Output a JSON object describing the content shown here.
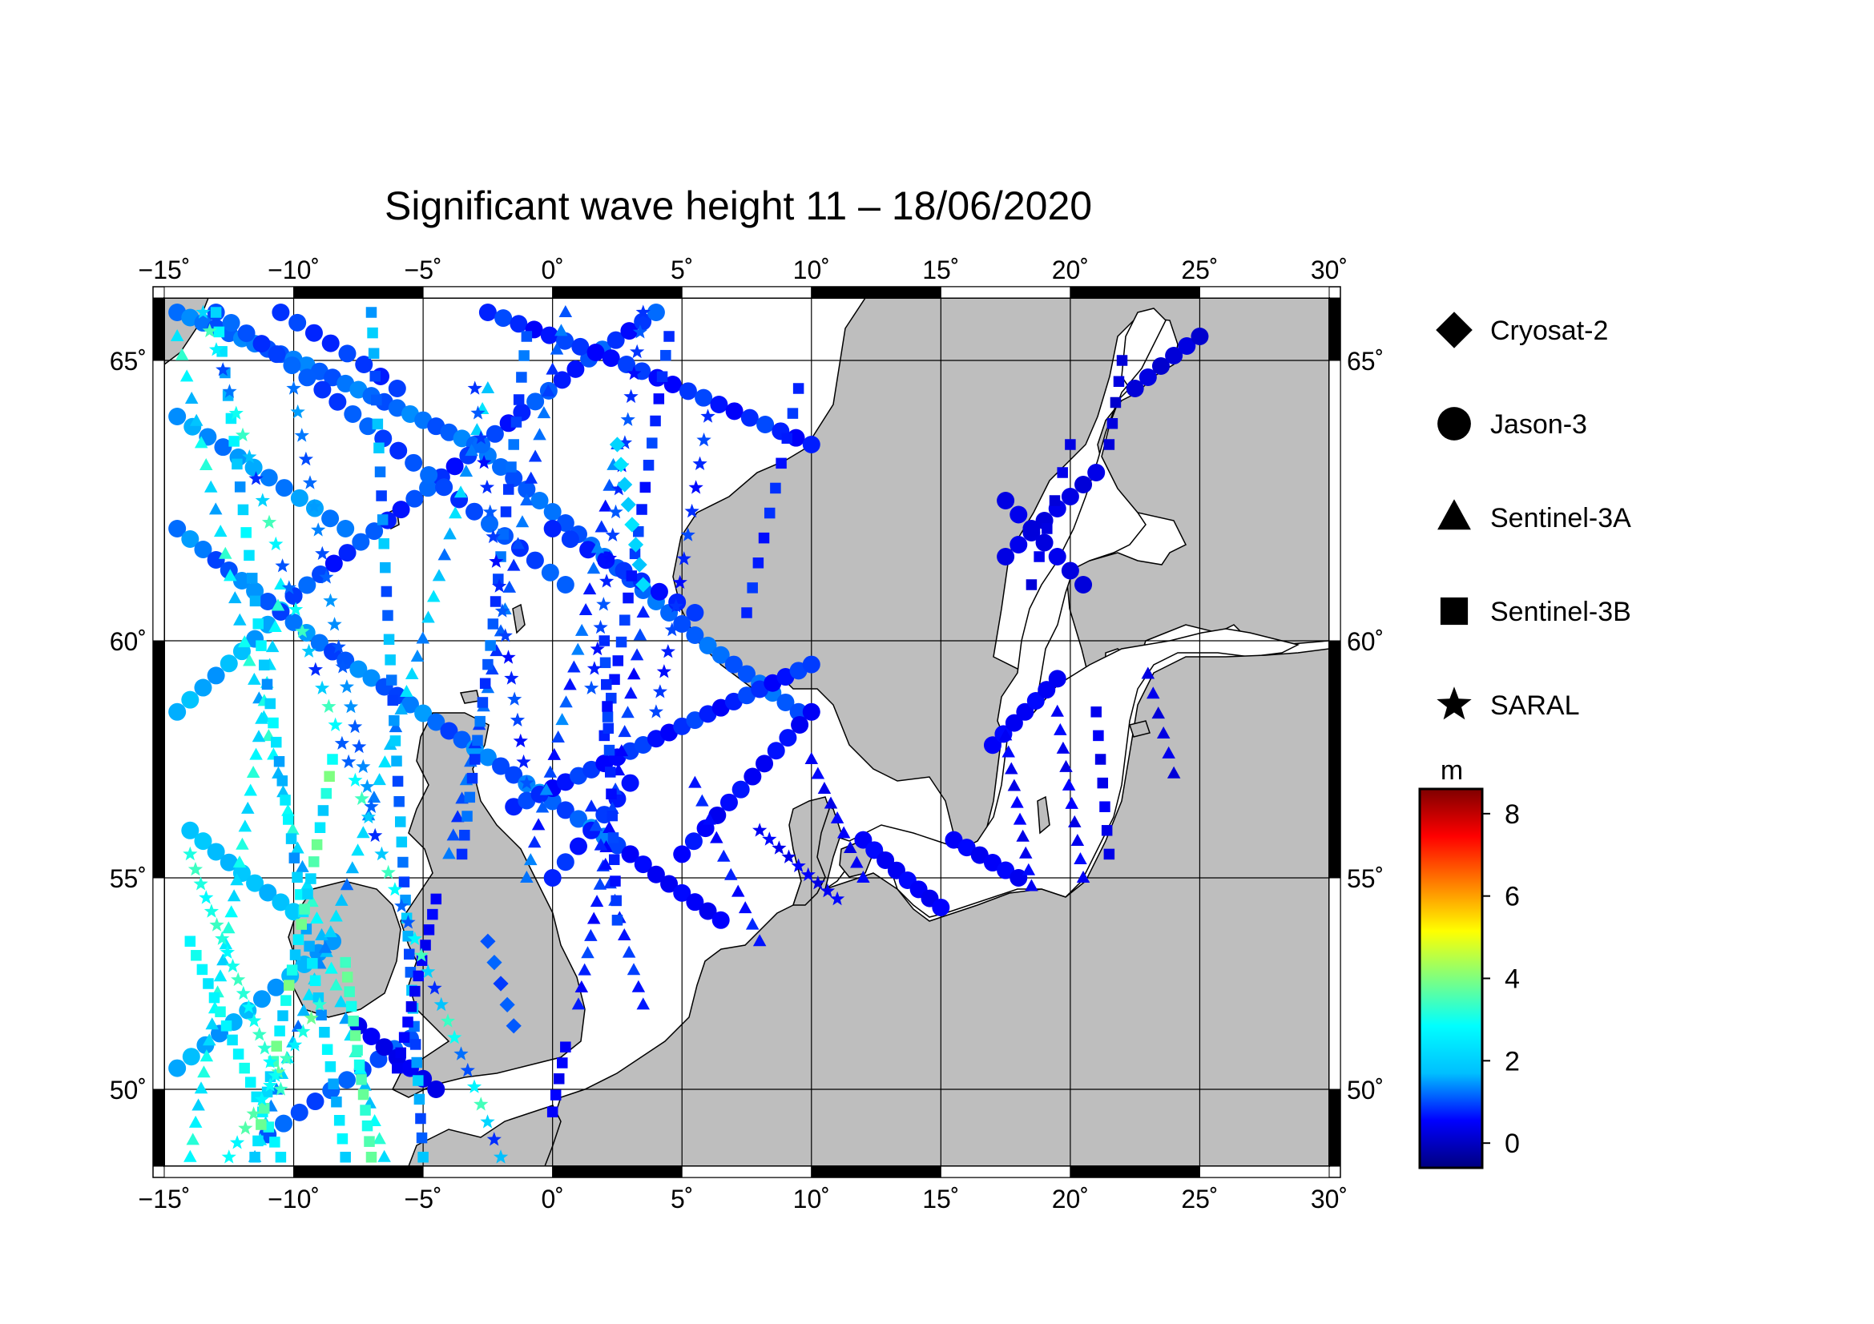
{
  "title": "Significant wave height 11 – 18/06/2020",
  "map": {
    "lon_range": [
      -15,
      30
    ],
    "lat_range": [
      48.3,
      66.3
    ],
    "lon_ticks": [
      -15,
      -10,
      -5,
      0,
      5,
      10,
      15,
      20,
      25,
      30
    ],
    "lon_tick_labels": [
      "−15˚",
      "−10˚",
      "−5˚",
      "0˚",
      "5˚",
      "10˚",
      "15˚",
      "20˚",
      "25˚",
      "30˚"
    ],
    "lat_ticks": [
      50,
      55,
      60,
      65
    ],
    "lat_tick_labels": [
      "50˚",
      "55˚",
      "60˚",
      "65˚"
    ],
    "land_color": "#bebebe",
    "sea_color": "#ffffff",
    "grid": true
  },
  "legend": [
    {
      "label": "Cryosat-2",
      "symbol": "diamond-icon"
    },
    {
      "label": "Jason-3",
      "symbol": "circle-icon"
    },
    {
      "label": "Sentinel-3A",
      "symbol": "triangle-icon"
    },
    {
      "label": "Sentinel-3B",
      "symbol": "square-icon"
    },
    {
      "label": "SARAL",
      "symbol": "star-icon"
    }
  ],
  "colorbar": {
    "unit": "m",
    "range": [
      -0.6,
      8.6
    ],
    "ticks": [
      0,
      2,
      4,
      6,
      8
    ],
    "tick_labels": [
      "0",
      "2",
      "4",
      "6",
      "8"
    ],
    "colors": [
      "#00007f",
      "#0000ff",
      "#00bfff",
      "#00ffff",
      "#7fff7f",
      "#ffff00",
      "#ff7f00",
      "#ff0000",
      "#7f0000"
    ]
  },
  "chart_data": {
    "type": "scatter",
    "title": "Significant wave height 11 – 18/06/2020",
    "xlabel": "",
    "ylabel": "",
    "xlim": [
      -15,
      30
    ],
    "ylim": [
      48.3,
      66.3
    ],
    "value_unit": "m",
    "series": [
      {
        "name": "Jason-3",
        "marker": "circle",
        "tracks": [
          {
            "start": [
              -14.5,
              66.0
            ],
            "end": [
              -3.0,
              63.5
            ],
            "n": 24,
            "swh": [
              1.0,
              1.4
            ]
          },
          {
            "start": [
              -3.0,
              63.5
            ],
            "end": [
              9.5,
              58.5
            ],
            "n": 26,
            "swh": [
              1.0,
              1.3
            ]
          },
          {
            "start": [
              -14.5,
              58.5
            ],
            "end": [
              -10.0,
              60.8
            ],
            "n": 10,
            "swh": [
              1.4,
              1.8
            ]
          },
          {
            "start": [
              -10.0,
              60.8
            ],
            "end": [
              4.0,
              66.0
            ],
            "n": 28,
            "swh": [
              0.6,
              1.2
            ]
          },
          {
            "start": [
              -14.5,
              62.0
            ],
            "end": [
              3.0,
              55.5
            ],
            "n": 36,
            "swh": [
              0.9,
              1.5
            ]
          },
          {
            "start": [
              3.0,
              55.5
            ],
            "end": [
              6.5,
              54.0
            ],
            "n": 8,
            "swh": [
              0.4,
              0.6
            ]
          },
          {
            "start": [
              -14.0,
              56.0
            ],
            "end": [
              -10.0,
              54.2
            ],
            "n": 9,
            "swh": [
              1.6,
              1.9
            ]
          },
          {
            "start": [
              -14.5,
              50.5
            ],
            "end": [
              -8.5,
              53.5
            ],
            "n": 12,
            "swh": [
              1.4,
              1.7
            ]
          },
          {
            "start": [
              -11.0,
              49.0
            ],
            "end": [
              -5.5,
              51.2
            ],
            "n": 10,
            "swh": [
              0.9,
              1.2
            ]
          },
          {
            "start": [
              -13.0,
              66.0
            ],
            "end": [
              0.5,
              61.0
            ],
            "n": 24,
            "swh": [
              0.8,
              1.2
            ]
          },
          {
            "start": [
              0.0,
              62.0
            ],
            "end": [
              5.5,
              60.5
            ],
            "n": 9,
            "swh": [
              0.6,
              0.9
            ]
          },
          {
            "start": [
              -2.5,
              66.0
            ],
            "end": [
              10.0,
              63.5
            ],
            "n": 22,
            "swh": [
              0.5,
              1.0
            ]
          },
          {
            "start": [
              -1.5,
              56.5
            ],
            "end": [
              10.0,
              59.5
            ],
            "n": 24,
            "swh": [
              0.5,
              1.0
            ]
          },
          {
            "start": [
              5.0,
              55.5
            ],
            "end": [
              10.0,
              58.5
            ],
            "n": 12,
            "swh": [
              0.4,
              0.7
            ]
          },
          {
            "start": [
              -14.5,
              64.0
            ],
            "end": [
              -8.0,
              62.0
            ],
            "n": 12,
            "swh": [
              1.2,
              1.6
            ]
          },
          {
            "start": [
              -10.5,
              66.0
            ],
            "end": [
              -6.0,
              64.5
            ],
            "n": 8,
            "swh": [
              0.7,
              1.0
            ]
          },
          {
            "start": [
              0.0,
              55.0
            ],
            "end": [
              3.0,
              57.0
            ],
            "n": 7,
            "swh": [
              0.6,
              0.9
            ]
          },
          {
            "start": [
              17.5,
              61.5
            ],
            "end": [
              21.0,
              63.0
            ],
            "n": 8,
            "swh": [
              0.2,
              0.4
            ]
          },
          {
            "start": [
              17.5,
              62.5
            ],
            "end": [
              20.5,
              61.0
            ],
            "n": 7,
            "swh": [
              0.2,
              0.4
            ]
          },
          {
            "start": [
              22.5,
              64.5
            ],
            "end": [
              25.0,
              65.5
            ],
            "n": 6,
            "swh": [
              0.1,
              0.3
            ]
          },
          {
            "start": [
              17.0,
              57.8
            ],
            "end": [
              19.5,
              59.2
            ],
            "n": 7,
            "swh": [
              0.4,
              0.6
            ]
          },
          {
            "start": [
              12.0,
              55.8
            ],
            "end": [
              15.0,
              54.3
            ],
            "n": 8,
            "swh": [
              0.4,
              0.6
            ]
          },
          {
            "start": [
              15.5,
              55.8
            ],
            "end": [
              18.0,
              55.0
            ],
            "n": 6,
            "swh": [
              0.4,
              0.6
            ]
          },
          {
            "start": [
              -7.5,
              51.5
            ],
            "end": [
              -4.5,
              50.0
            ],
            "n": 7,
            "swh": [
              0.3,
              0.5
            ]
          }
        ]
      },
      {
        "name": "Sentinel-3A",
        "marker": "triangle",
        "tracks": [
          {
            "start": [
              -14.5,
              65.5
            ],
            "end": [
              -6.5,
              48.5
            ],
            "n": 44,
            "swh": [
              1.5,
              3.3
            ]
          },
          {
            "start": [
              -10.5,
              61.0
            ],
            "end": [
              -14.0,
              48.5
            ],
            "n": 34,
            "swh": [
              2.0,
              3.2
            ]
          },
          {
            "start": [
              -2.5,
              64.5
            ],
            "end": [
              -11.5,
              48.5
            ],
            "n": 44,
            "swh": [
              1.2,
              2.4
            ]
          },
          {
            "start": [
              0.5,
              66.0
            ],
            "end": [
              -4.0,
              55.5
            ],
            "n": 28,
            "swh": [
              0.8,
              1.3
            ]
          },
          {
            "start": [
              2.5,
              63.5
            ],
            "end": [
              -1.0,
              55.0
            ],
            "n": 24,
            "swh": [
              0.6,
              1.4
            ]
          },
          {
            "start": [
              3.5,
              60.5
            ],
            "end": [
              1.0,
              52.0
            ],
            "n": 22,
            "swh": [
              0.5,
              1.0
            ]
          },
          {
            "start": [
              10.0,
              57.5
            ],
            "end": [
              12.0,
              55.0
            ],
            "n": 9,
            "swh": [
              0.3,
              0.6
            ]
          },
          {
            "start": [
              17.5,
              58.0
            ],
            "end": [
              18.5,
              54.8
            ],
            "n": 10,
            "swh": [
              0.3,
              0.6
            ]
          },
          {
            "start": [
              19.5,
              58.5
            ],
            "end": [
              20.5,
              55.0
            ],
            "n": 10,
            "swh": [
              0.3,
              0.6
            ]
          },
          {
            "start": [
              23.0,
              59.3
            ],
            "end": [
              24.0,
              57.2
            ],
            "n": 6,
            "swh": [
              0.2,
              0.4
            ]
          },
          {
            "start": [
              1.5,
              56.5
            ],
            "end": [
              3.5,
              52.0
            ],
            "n": 12,
            "swh": [
              0.6,
              1.0
            ]
          },
          {
            "start": [
              5.5,
              57.0
            ],
            "end": [
              8.0,
              53.5
            ],
            "n": 10,
            "swh": [
              0.5,
              0.8
            ]
          }
        ]
      },
      {
        "name": "Sentinel-3B",
        "marker": "square",
        "tracks": [
          {
            "start": [
              -13.0,
              66.0
            ],
            "end": [
              -8.0,
              48.5
            ],
            "n": 44,
            "swh": [
              1.4,
              2.8
            ]
          },
          {
            "start": [
              -7.0,
              66.0
            ],
            "end": [
              -5.0,
              48.5
            ],
            "n": 42,
            "swh": [
              0.9,
              2.0
            ]
          },
          {
            "start": [
              -14.0,
              53.5
            ],
            "end": [
              -10.5,
              48.5
            ],
            "n": 16,
            "swh": [
              2.4,
              3.0
            ]
          },
          {
            "start": [
              -8.5,
              57.5
            ],
            "end": [
              -11.5,
              48.5
            ],
            "n": 26,
            "swh": [
              1.8,
              4.0
            ]
          },
          {
            "start": [
              -8.0,
              53.0
            ],
            "end": [
              -7.0,
              48.5
            ],
            "n": 14,
            "swh": [
              3.0,
              3.8
            ]
          },
          {
            "start": [
              -1.0,
              65.5
            ],
            "end": [
              -3.5,
              55.5
            ],
            "n": 26,
            "swh": [
              0.8,
              1.3
            ]
          },
          {
            "start": [
              4.5,
              65.5
            ],
            "end": [
              2.0,
              58.0
            ],
            "n": 20,
            "swh": [
              0.6,
              1.0
            ]
          },
          {
            "start": [
              9.5,
              64.5
            ],
            "end": [
              7.5,
              60.5
            ],
            "n": 10,
            "swh": [
              0.6,
              0.9
            ]
          },
          {
            "start": [
              -4.5,
              54.5
            ],
            "end": [
              -6.0,
              50.5
            ],
            "n": 12,
            "swh": [
              0.4,
              0.6
            ]
          },
          {
            "start": [
              0.5,
              51.0
            ],
            "end": [
              0.0,
              49.5
            ],
            "n": 5,
            "swh": [
              0.4,
              0.6
            ]
          },
          {
            "start": [
              20.0,
              63.5
            ],
            "end": [
              18.5,
              61.0
            ],
            "n": 6,
            "swh": [
              0.2,
              0.4
            ]
          },
          {
            "start": [
              22.0,
              65.0
            ],
            "end": [
              21.5,
              63.5
            ],
            "n": 5,
            "swh": [
              0.1,
              0.3
            ]
          },
          {
            "start": [
              21.0,
              58.5
            ],
            "end": [
              21.5,
              55.5
            ],
            "n": 7,
            "swh": [
              0.3,
              0.5
            ]
          },
          {
            "start": [
              2.0,
              60.0
            ],
            "end": [
              2.5,
              54.0
            ],
            "n": 14,
            "swh": [
              0.6,
              1.0
            ]
          }
        ]
      },
      {
        "name": "SARAL",
        "marker": "star",
        "tracks": [
          {
            "start": [
              -13.5,
              66.0
            ],
            "end": [
              -2.0,
              48.5
            ],
            "n": 46,
            "swh": [
              0.8,
              3.5
            ]
          },
          {
            "start": [
              -9.0,
              52.0
            ],
            "end": [
              -12.5,
              48.5
            ],
            "n": 12,
            "swh": [
              2.6,
              3.8
            ]
          },
          {
            "start": [
              -14.0,
              55.5
            ],
            "end": [
              -10.5,
              50.0
            ],
            "n": 18,
            "swh": [
              2.8,
              3.4
            ]
          },
          {
            "start": [
              -3.0,
              64.5
            ],
            "end": [
              -1.0,
              57.0
            ],
            "n": 18,
            "swh": [
              0.6,
              1.1
            ]
          },
          {
            "start": [
              3.5,
              66.0
            ],
            "end": [
              1.5,
              59.0
            ],
            "n": 18,
            "swh": [
              0.6,
              1.1
            ]
          },
          {
            "start": [
              6.0,
              64.0
            ],
            "end": [
              4.0,
              58.5
            ],
            "n": 14,
            "swh": [
              0.6,
              1.0
            ]
          },
          {
            "start": [
              8.0,
              56.0
            ],
            "end": [
              11.0,
              54.5
            ],
            "n": 9,
            "swh": [
              0.3,
              0.6
            ]
          },
          {
            "start": [
              -10.0,
              64.5
            ],
            "end": [
              -7.0,
              56.5
            ],
            "n": 20,
            "swh": [
              1.0,
              1.5
            ]
          }
        ]
      },
      {
        "name": "Cryosat-2",
        "marker": "diamond",
        "tracks": [
          {
            "start": [
              2.5,
              63.5
            ],
            "end": [
              3.5,
              61.0
            ],
            "n": 8,
            "swh": [
              1.8,
              2.4
            ]
          },
          {
            "start": [
              -2.5,
              53.5
            ],
            "end": [
              -1.5,
              51.5
            ],
            "n": 5,
            "swh": [
              0.9,
              1.2
            ]
          }
        ]
      }
    ]
  }
}
